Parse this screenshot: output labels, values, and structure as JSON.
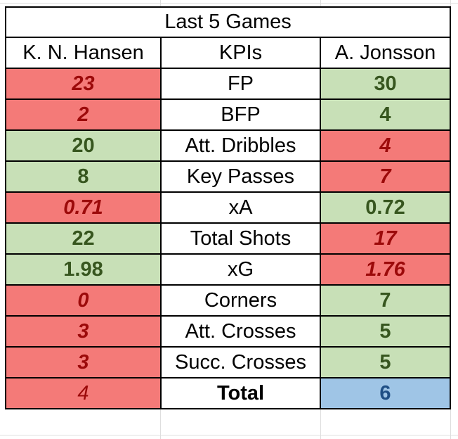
{
  "title": "Last 5 Games",
  "headers": {
    "left": "K. N. Hansen",
    "middle": "KPIs",
    "right": "A. Jonsson"
  },
  "rows": [
    {
      "kpi": "FP",
      "left": "23",
      "right": "30",
      "left_status": "bad",
      "right_status": "good"
    },
    {
      "kpi": "BFP",
      "left": "2",
      "right": "4",
      "left_status": "bad",
      "right_status": "good"
    },
    {
      "kpi": "Att. Dribbles",
      "left": "20",
      "right": "4",
      "left_status": "good",
      "right_status": "bad"
    },
    {
      "kpi": "Key Passes",
      "left": "8",
      "right": "7",
      "left_status": "good",
      "right_status": "bad"
    },
    {
      "kpi": "xA",
      "left": "0.71",
      "right": "0.72",
      "left_status": "bad",
      "right_status": "good"
    },
    {
      "kpi": "Total Shots",
      "left": "22",
      "right": "17",
      "left_status": "good",
      "right_status": "bad"
    },
    {
      "kpi": "xG",
      "left": "1.98",
      "right": "1.76",
      "left_status": "good",
      "right_status": "bad"
    },
    {
      "kpi": "Corners",
      "left": "0",
      "right": "7",
      "left_status": "bad",
      "right_status": "good"
    },
    {
      "kpi": "Att. Crosses",
      "left": "3",
      "right": "5",
      "left_status": "bad",
      "right_status": "good"
    },
    {
      "kpi": "Succ. Crosses",
      "left": "3",
      "right": "5",
      "left_status": "bad",
      "right_status": "good"
    }
  ],
  "total": {
    "kpi": "Total",
    "left": "4",
    "right": "6"
  },
  "colors": {
    "bad_fill": "#f47a78",
    "bad_text": "#9c0a0a",
    "good_fill": "#c8e0b7",
    "good_text": "#37561f",
    "winner_fill": "#9fc5e6",
    "winner_text": "#1f4f85"
  }
}
